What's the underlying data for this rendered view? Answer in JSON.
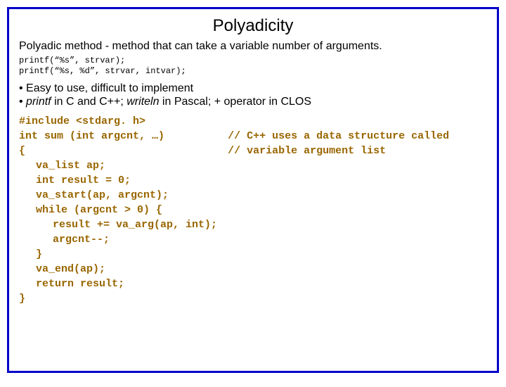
{
  "colors": {
    "border": "#0000c8",
    "code_color": "#996600",
    "text_color": "#000000",
    "background": "#ffffff"
  },
  "title": "Polyadicity",
  "subtitle": "Polyadic method - method that can take a variable number of arguments.",
  "example_small": {
    "l1": "printf(“%s”, strvar);",
    "l2": "printf(“%s, %d”, strvar, intvar);"
  },
  "bullets": {
    "b1_pre": "• Easy to use, difficult to implement",
    "b2_pre": "• ",
    "b2_printf": "printf",
    "b2_mid1": " in C and C++; ",
    "b2_writeln": "writeln",
    "b2_mid2": " in Pascal; + operator in CLOS"
  },
  "code": {
    "l01a": "#include <stdarg. h>",
    "l02a": "int sum (int argcnt, …)",
    "l02c": "// C++ uses a data structure called",
    "l03a": "{",
    "l03c": "// variable argument list",
    "l04": "va_list ap;",
    "l05": "int result = 0;",
    "l06": "va_start(ap, argcnt);",
    "l07": "while (argcnt > 0) {",
    "l08": "result += va_arg(ap, int);",
    "l09": "argcnt--;",
    "l10": "}",
    "l11": "va_end(ap);",
    "l12": "return result;",
    "l13": "}"
  },
  "layout": {
    "comment_col_chars": 33
  }
}
